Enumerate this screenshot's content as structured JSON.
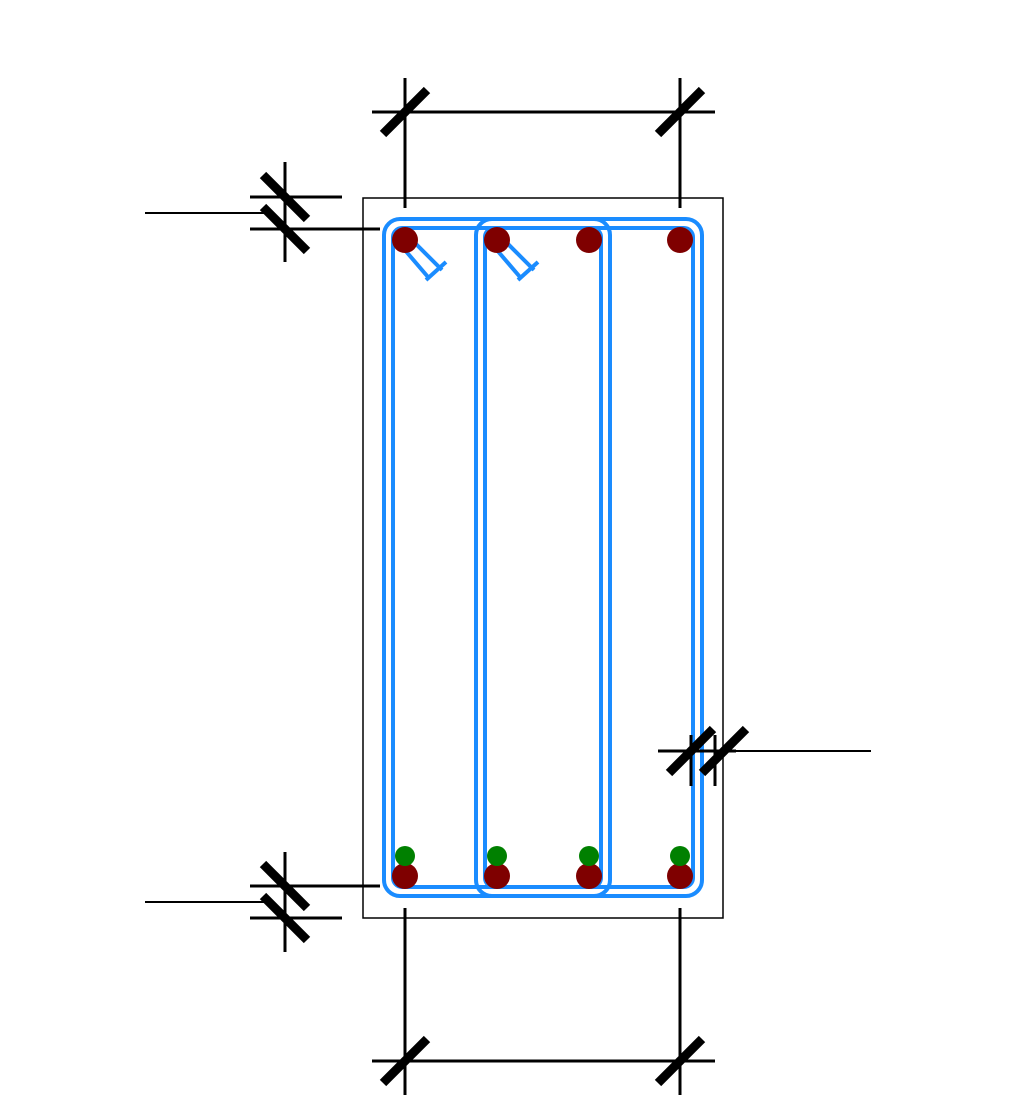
{
  "diagram": {
    "kind": "reinforced-concrete-beam-section",
    "colors": {
      "background": "#ffffff",
      "outline": "#000000",
      "stirrup": "#1a8cff",
      "main_bar": "#7f0000",
      "secondary_bar": "#008000",
      "dimension": "#000000"
    },
    "top_bars": {
      "count": 4
    },
    "bottom_main_bars": {
      "count": 4
    },
    "bottom_secondary_bars": {
      "count": 4
    },
    "stirrups": {
      "count": 2,
      "hooks": 2
    },
    "dimension_labels": []
  }
}
